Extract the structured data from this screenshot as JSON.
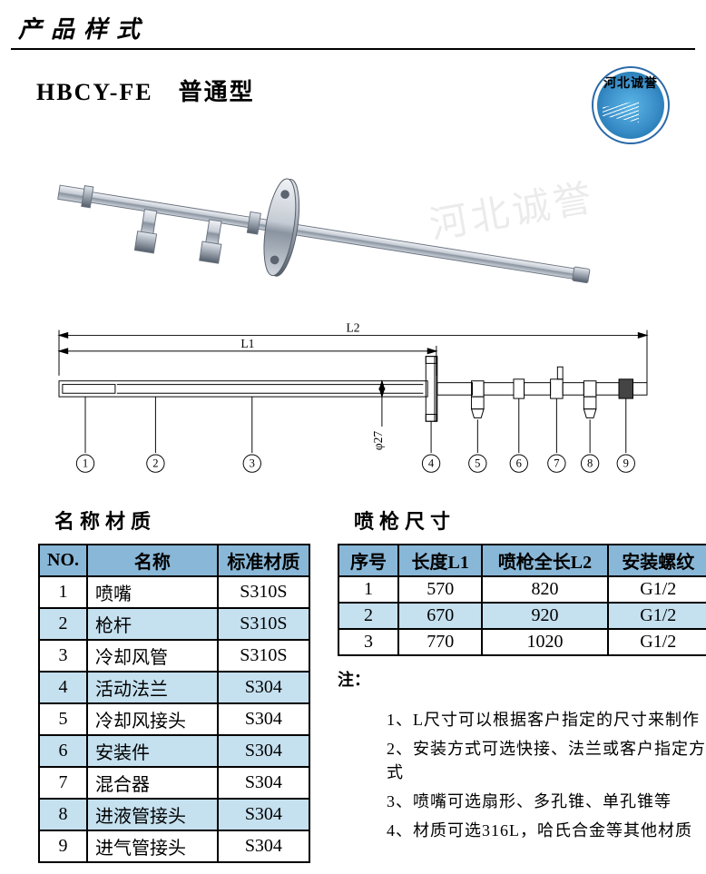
{
  "pageTitle": "产品样式",
  "subtitle": "HBCY-FE　普通型",
  "logoText": "河北诚誉",
  "watermark": "河北诚誉",
  "drawing": {
    "lenLabels": {
      "L1": "L1",
      "L2": "L2",
      "dia": "φ27"
    },
    "callouts": [
      "1",
      "2",
      "3",
      "4",
      "5",
      "6",
      "7",
      "8",
      "9"
    ]
  },
  "materials": {
    "title": "名称材质",
    "headers": {
      "no": "NO.",
      "name": "名称",
      "material": "标准材质"
    },
    "rows": [
      {
        "no": "1",
        "name": "喷嘴",
        "material": "S310S",
        "alt": false
      },
      {
        "no": "2",
        "name": "枪杆",
        "material": "S310S",
        "alt": true
      },
      {
        "no": "3",
        "name": "冷却风管",
        "material": "S310S",
        "alt": false
      },
      {
        "no": "4",
        "name": "活动法兰",
        "material": "S304",
        "alt": true
      },
      {
        "no": "5",
        "name": "冷却风接头",
        "material": "S304",
        "alt": false
      },
      {
        "no": "6",
        "name": "安装件",
        "material": "S304",
        "alt": true
      },
      {
        "no": "7",
        "name": "混合器",
        "material": "S304",
        "alt": false
      },
      {
        "no": "8",
        "name": "进液管接头",
        "material": "S304",
        "alt": true
      },
      {
        "no": "9",
        "name": "进气管接头",
        "material": "S304",
        "alt": false
      }
    ]
  },
  "sizes": {
    "title": "喷枪尺寸",
    "headers": {
      "seq": "序号",
      "L1": "长度L1",
      "L2": "喷枪全长L2",
      "thread": "安装螺纹"
    },
    "rows": [
      {
        "seq": "1",
        "L1": "570",
        "L2": "820",
        "thread": "G1/2",
        "alt": false
      },
      {
        "seq": "2",
        "L1": "670",
        "L2": "920",
        "thread": "G1/2",
        "alt": true
      },
      {
        "seq": "3",
        "L1": "770",
        "L2": "1020",
        "thread": "G1/2",
        "alt": false
      }
    ]
  },
  "notes": {
    "header": "注：",
    "items": [
      "1、L尺寸可以根据客户指定的尺寸来制作",
      "2、安装方式可选快接、法兰或客户指定方式",
      "3、喷嘴可选扇形、多孔锥、单孔锥等",
      "4、材质可选316L，哈氏合金等其他材质"
    ]
  },
  "colors": {
    "headerBg": "#89b7d7",
    "altBg": "#c5e0ef",
    "border": "#000000",
    "logoBorder": "#2a6aa8",
    "metal1": "#d9dde2",
    "metal2": "#a8b0ba",
    "metal3": "#505a66"
  }
}
